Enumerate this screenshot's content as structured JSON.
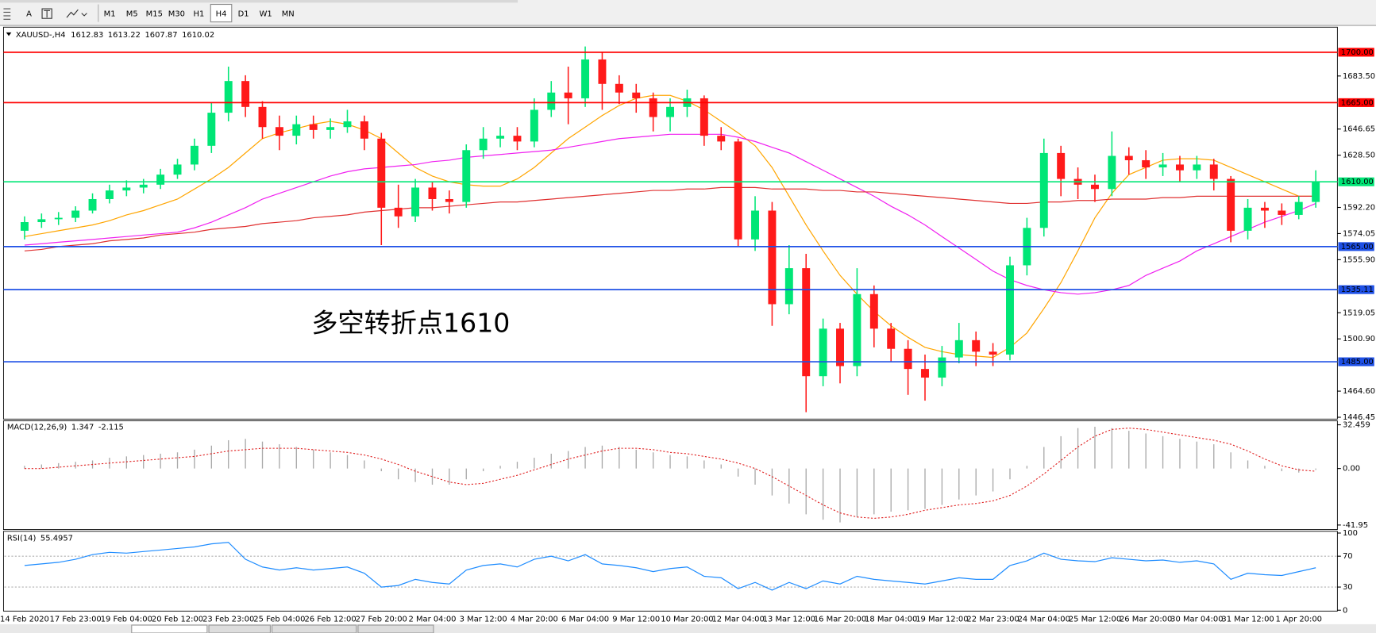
{
  "toolbar": {
    "text_tool": "A",
    "timeframes": [
      "M1",
      "M5",
      "M15",
      "M30",
      "H1",
      "H4",
      "D1",
      "W1",
      "MN"
    ],
    "active_timeframe": "H4"
  },
  "chart_data": [
    {
      "type": "candlestick",
      "symbol": "XAUUSD-,H4",
      "quote": [
        1612.83,
        1613.22,
        1607.87,
        1610.02
      ],
      "annotation": "多空转折点1610",
      "annotation_color": "#ff2020",
      "up_color": "#00e676",
      "down_color": "#ff1a1a",
      "ylim": [
        1445.8,
        1716.8
      ],
      "yticks": [
        {
          "value": 1683.5,
          "label": "1683.50"
        },
        {
          "value": 1646.65,
          "label": "1646.65"
        },
        {
          "value": 1628.5,
          "label": "1628.50"
        },
        {
          "value": 1592.2,
          "label": "1592.20"
        },
        {
          "value": 1574.05,
          "label": "1574.05"
        },
        {
          "value": 1555.9,
          "label": "1555.90"
        },
        {
          "value": 1519.05,
          "label": "1519.05"
        },
        {
          "value": 1500.9,
          "label": "1500.90"
        },
        {
          "value": 1464.6,
          "label": "1464.60"
        },
        {
          "value": 1446.45,
          "label": "1446.45"
        }
      ],
      "levels": [
        {
          "value": 1700,
          "label": "1700.00",
          "color": "#ff0000"
        },
        {
          "value": 1665,
          "label": "1665.00",
          "color": "#ff0000"
        },
        {
          "value": 1610,
          "label": "1610.00",
          "color": "#00e676"
        },
        {
          "value": 1565,
          "label": "1565.00",
          "color": "#1e50e6"
        },
        {
          "value": 1535.11,
          "label": "1535.11",
          "color": "#1e50e6"
        },
        {
          "value": 1485,
          "label": "1485.00",
          "color": "#1e50e6"
        }
      ],
      "categories": [
        "14 Feb 2020",
        null,
        null,
        "17 Feb 23:00",
        null,
        null,
        "19 Feb 04:00",
        null,
        null,
        "20 Feb 12:00",
        null,
        null,
        "23 Feb 23:00",
        null,
        null,
        "25 Feb 04:00",
        null,
        null,
        "26 Feb 12:00",
        null,
        null,
        "27 Feb 20:00",
        null,
        null,
        "2 Mar 04:00",
        null,
        null,
        "3 Mar 12:00",
        null,
        null,
        "4 Mar 20:00",
        null,
        null,
        "6 Mar 04:00",
        null,
        null,
        "9 Mar 12:00",
        null,
        null,
        "10 Mar 20:00",
        null,
        null,
        "12 Mar 04:00",
        null,
        null,
        "13 Mar 12:00",
        null,
        null,
        "16 Mar 20:00",
        null,
        null,
        "18 Mar 04:00",
        null,
        null,
        "19 Mar 12:00",
        null,
        null,
        "22 Mar 23:00",
        null,
        null,
        "24 Mar 04:00",
        null,
        null,
        "25 Mar 12:00",
        null,
        null,
        "26 Mar 20:00",
        null,
        null,
        "30 Mar 04:00",
        null,
        null,
        "31 Mar 12:00",
        null,
        null,
        "1 Apr 20:00",
        null
      ],
      "open": [
        1576,
        1582,
        1584,
        1585,
        1590,
        1598,
        1604,
        1606,
        1608,
        1615,
        1622,
        1635,
        1658,
        1680,
        1662,
        1648,
        1642,
        1650,
        1646,
        1648,
        1652,
        1640,
        1592,
        1586,
        1606,
        1598,
        1596,
        1632,
        1640,
        1642,
        1638,
        1660,
        1672,
        1668,
        1695,
        1678,
        1672,
        1668,
        1655,
        1662,
        1668,
        1642,
        1638,
        1570,
        1590,
        1525,
        1550,
        1475,
        1508,
        1482,
        1532,
        1508,
        1494,
        1480,
        1474,
        1488,
        1500,
        1492,
        1490,
        1552,
        1578,
        1630,
        1612,
        1608,
        1605,
        1628,
        1625,
        1620,
        1622,
        1618,
        1622,
        1612,
        1576,
        1592,
        1590,
        1587,
        1596
      ],
      "high": [
        1586,
        1588,
        1589,
        1593,
        1602,
        1608,
        1611,
        1612,
        1619,
        1626,
        1640,
        1665,
        1690,
        1684,
        1666,
        1656,
        1656,
        1656,
        1654,
        1660,
        1656,
        1644,
        1608,
        1612,
        1610,
        1604,
        1636,
        1648,
        1648,
        1648,
        1668,
        1680,
        1690,
        1704,
        1700,
        1684,
        1678,
        1672,
        1668,
        1674,
        1670,
        1648,
        1640,
        1600,
        1596,
        1566,
        1560,
        1515,
        1512,
        1550,
        1538,
        1512,
        1500,
        1490,
        1496,
        1512,
        1506,
        1498,
        1558,
        1585,
        1640,
        1635,
        1620,
        1615,
        1645,
        1634,
        1632,
        1630,
        1628,
        1628,
        1626,
        1614,
        1598,
        1596,
        1595,
        1600,
        1618
      ],
      "low": [
        1570,
        1578,
        1580,
        1582,
        1588,
        1595,
        1600,
        1602,
        1605,
        1612,
        1618,
        1630,
        1652,
        1655,
        1640,
        1632,
        1636,
        1640,
        1640,
        1644,
        1632,
        1566,
        1578,
        1582,
        1590,
        1588,
        1592,
        1626,
        1634,
        1632,
        1634,
        1655,
        1650,
        1662,
        1660,
        1664,
        1658,
        1645,
        1645,
        1655,
        1635,
        1632,
        1565,
        1562,
        1510,
        1518,
        1450,
        1468,
        1470,
        1475,
        1495,
        1485,
        1462,
        1458,
        1468,
        1484,
        1482,
        1482,
        1486,
        1545,
        1572,
        1600,
        1598,
        1596,
        1600,
        1615,
        1612,
        1614,
        1610,
        1612,
        1604,
        1568,
        1570,
        1578,
        1580,
        1584,
        1592
      ],
      "close": [
        1582,
        1584,
        1585,
        1590,
        1598,
        1604,
        1606,
        1608,
        1615,
        1622,
        1635,
        1658,
        1680,
        1662,
        1648,
        1642,
        1650,
        1646,
        1648,
        1652,
        1640,
        1592,
        1586,
        1606,
        1598,
        1596,
        1632,
        1640,
        1642,
        1638,
        1660,
        1672,
        1668,
        1695,
        1678,
        1672,
        1668,
        1655,
        1662,
        1668,
        1642,
        1638,
        1570,
        1590,
        1525,
        1550,
        1475,
        1508,
        1482,
        1532,
        1508,
        1494,
        1480,
        1474,
        1488,
        1500,
        1492,
        1490,
        1552,
        1578,
        1630,
        1612,
        1608,
        1605,
        1628,
        1625,
        1620,
        1622,
        1618,
        1622,
        1612,
        1576,
        1592,
        1590,
        1587,
        1596,
        1610
      ],
      "moving_averages": [
        {
          "color": "#ffa500",
          "values": [
            1572,
            1574,
            1576,
            1578,
            1580,
            1583,
            1587,
            1590,
            1594,
            1598,
            1605,
            1612,
            1620,
            1630,
            1640,
            1644,
            1647,
            1650,
            1652,
            1650,
            1646,
            1640,
            1630,
            1620,
            1614,
            1610,
            1608,
            1607,
            1607,
            1612,
            1620,
            1630,
            1640,
            1648,
            1656,
            1663,
            1668,
            1670,
            1670,
            1666,
            1660,
            1652,
            1644,
            1635,
            1620,
            1600,
            1580,
            1562,
            1545,
            1532,
            1520,
            1510,
            1502,
            1495,
            1492,
            1490,
            1489,
            1488,
            1495,
            1505,
            1522,
            1540,
            1562,
            1585,
            1602,
            1615,
            1620,
            1625,
            1626,
            1626,
            1625,
            1620,
            1615,
            1610,
            1605,
            1600,
            1600
          ]
        },
        {
          "color": "#f020f0",
          "values": [
            1566,
            1567,
            1568,
            1569,
            1570,
            1571,
            1572,
            1573,
            1574,
            1575,
            1578,
            1582,
            1587,
            1592,
            1598,
            1602,
            1606,
            1610,
            1614,
            1617,
            1619,
            1620,
            1621,
            1622,
            1624,
            1625,
            1627,
            1628,
            1629,
            1630,
            1631,
            1632,
            1634,
            1636,
            1638,
            1640,
            1641,
            1642,
            1643,
            1643,
            1643,
            1643,
            1641,
            1638,
            1634,
            1630,
            1624,
            1618,
            1612,
            1606,
            1600,
            1593,
            1587,
            1580,
            1572,
            1564,
            1556,
            1548,
            1542,
            1538,
            1535,
            1533,
            1532,
            1533,
            1535,
            1538,
            1545,
            1550,
            1555,
            1562,
            1567,
            1572,
            1577,
            1582,
            1586,
            1590,
            1595
          ]
        },
        {
          "color": "#e03030",
          "values": [
            1562,
            1563,
            1565,
            1566,
            1567,
            1569,
            1570,
            1571,
            1573,
            1574,
            1575,
            1577,
            1578,
            1579,
            1581,
            1582,
            1583,
            1585,
            1586,
            1587,
            1589,
            1590,
            1591,
            1592,
            1592,
            1593,
            1594,
            1595,
            1596,
            1596,
            1597,
            1598,
            1599,
            1600,
            1601,
            1602,
            1603,
            1604,
            1604,
            1605,
            1605,
            1606,
            1606,
            1606,
            1605,
            1605,
            1605,
            1604,
            1604,
            1603,
            1603,
            1602,
            1601,
            1600,
            1599,
            1598,
            1597,
            1596,
            1595,
            1595,
            1596,
            1596,
            1597,
            1597,
            1598,
            1598,
            1598,
            1599,
            1599,
            1600,
            1600,
            1600,
            1600,
            1600,
            1600,
            1600,
            1600
          ]
        }
      ]
    },
    {
      "type": "macd",
      "title": "MACD(12,26,9)",
      "current": [
        1.347,
        -2.115
      ],
      "ylim": [
        -45.3,
        35.4
      ],
      "yticks": [
        32.459,
        {
          "value": 0,
          "label": "0.00"
        },
        -41.95
      ],
      "histogram_color": "#a8a8a8",
      "signal_color": "#e02020",
      "histogram": [
        2,
        3,
        4,
        5,
        6,
        8,
        9,
        10,
        11,
        12,
        14,
        17,
        21,
        22,
        20,
        18,
        16,
        14,
        12,
        10,
        6,
        -2,
        -8,
        -10,
        -12,
        -12,
        -8,
        -2,
        2,
        5,
        8,
        11,
        13,
        16,
        17,
        16,
        14,
        12,
        10,
        9,
        6,
        3,
        -6,
        -12,
        -20,
        -26,
        -34,
        -38,
        -40,
        -36,
        -34,
        -32,
        -31,
        -30,
        -27,
        -23,
        -20,
        -17,
        -8,
        2,
        16,
        24,
        30,
        31,
        30,
        28,
        26,
        24,
        22,
        20,
        18,
        12,
        6,
        2,
        -2,
        -3,
        -1
      ],
      "signal": [
        0,
        0,
        1,
        2,
        3,
        4,
        5,
        6,
        7,
        8,
        9,
        11,
        13,
        14,
        15,
        15,
        15,
        14,
        13,
        12,
        10,
        7,
        3,
        -2,
        -6,
        -10,
        -12,
        -11,
        -8,
        -5,
        -1,
        3,
        7,
        10,
        13,
        15,
        15,
        14,
        12,
        11,
        9,
        7,
        4,
        0,
        -6,
        -13,
        -20,
        -27,
        -33,
        -36,
        -37,
        -36,
        -34,
        -31,
        -29,
        -27,
        -26,
        -24,
        -20,
        -13,
        -4,
        6,
        16,
        24,
        29,
        30,
        29,
        27,
        25,
        23,
        21,
        18,
        13,
        7,
        2,
        -1,
        -2
      ]
    },
    {
      "type": "line",
      "title": "RSI(14)",
      "current": 55.4957,
      "color": "#1e8cff",
      "grid": true,
      "ylim": [
        0,
        100
      ],
      "yticks": [
        0,
        30,
        70,
        100
      ],
      "values": [
        58,
        60,
        62,
        66,
        72,
        75,
        74,
        76,
        78,
        80,
        82,
        86,
        88,
        66,
        56,
        52,
        55,
        52,
        54,
        56,
        48,
        30,
        32,
        40,
        36,
        34,
        52,
        58,
        60,
        56,
        66,
        70,
        64,
        72,
        60,
        58,
        55,
        50,
        54,
        56,
        44,
        42,
        28,
        36,
        26,
        36,
        28,
        38,
        34,
        44,
        40,
        38,
        36,
        34,
        38,
        42,
        40,
        40,
        58,
        64,
        74,
        66,
        64,
        63,
        68,
        66,
        64,
        65,
        62,
        64,
        60,
        40,
        48,
        46,
        45,
        50,
        55
      ]
    }
  ]
}
